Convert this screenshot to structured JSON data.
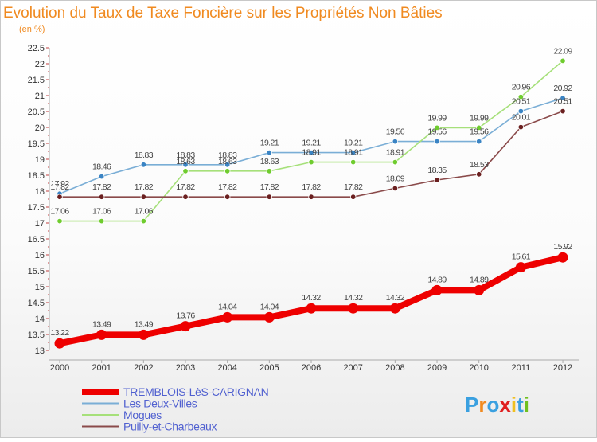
{
  "chart_data": {
    "type": "line",
    "title": "Evolution du Taux de Taxe Foncière sur les Propriétés Non Bâties",
    "subtitle": "(en %)",
    "xlabel": "",
    "ylabel": "",
    "ylim": [
      13,
      22.5
    ],
    "y_ticks": [
      13,
      13.5,
      14,
      14.5,
      15,
      15.5,
      16,
      16.5,
      17,
      17.5,
      18,
      18.5,
      19,
      19.5,
      20,
      20.5,
      21,
      21.5,
      22,
      22.5
    ],
    "y_tick_labels": [
      "13",
      "13.5",
      "14",
      "14.5",
      "15",
      "15.5",
      "16",
      "16.5",
      "17",
      "17.5",
      "18",
      "18.5",
      "19",
      "19.5",
      "20",
      "20.5",
      "21",
      "21.5",
      "22",
      "22.5"
    ],
    "categories": [
      "2000",
      "2001",
      "2002",
      "2003",
      "2004",
      "2005",
      "2006",
      "2007",
      "2008",
      "2009",
      "2010",
      "2011",
      "2012"
    ],
    "grid": false,
    "legend_position": "bottom-left",
    "series": [
      {
        "name": "TREMBLOIS-LèS-CARIGNAN",
        "color": "#ee0000",
        "values": [
          13.22,
          13.49,
          13.49,
          13.76,
          14.04,
          14.04,
          14.32,
          14.32,
          14.32,
          14.89,
          14.89,
          15.61,
          15.92
        ],
        "labels": [
          "13.22",
          "13.49",
          "13.49",
          "13.76",
          "14.04",
          "14.04",
          "14.32",
          "14.32",
          "14.32",
          "14.89",
          "14.89",
          "15.61",
          "15.92"
        ]
      },
      {
        "name": "Les Deux-Villes",
        "color": "#7aaed6",
        "marker_color": "#3a84c4",
        "values": [
          17.92,
          18.46,
          18.83,
          18.83,
          18.83,
          19.21,
          19.21,
          19.21,
          19.56,
          19.56,
          19.56,
          20.51,
          20.92
        ],
        "labels": [
          "17.92",
          "18.46",
          "18.83",
          "18.83",
          "18.83",
          "19.21",
          "19.21",
          "19.21",
          "19.56",
          "19.56",
          "19.56",
          "20.51",
          "20.92"
        ]
      },
      {
        "name": "Mogues",
        "color": "#a6e07a",
        "marker_color": "#6fcc2e",
        "values": [
          17.06,
          17.06,
          17.06,
          18.63,
          18.63,
          18.63,
          18.91,
          18.91,
          18.91,
          19.99,
          19.99,
          20.96,
          22.09
        ],
        "labels": [
          "17.06",
          "17.06",
          "17.06",
          "18.63",
          "18.63",
          "18.63",
          "18.91",
          "18.91",
          "18.91",
          "19.99",
          "19.99",
          "20.96",
          "22.09"
        ]
      },
      {
        "name": "Puilly-et-Charbeaux",
        "color": "#8a4a4a",
        "marker_color": "#6b2020",
        "values": [
          17.82,
          17.82,
          17.82,
          17.82,
          17.82,
          17.82,
          17.82,
          17.82,
          18.09,
          18.35,
          18.53,
          20.01,
          20.51
        ],
        "labels": [
          "17.82",
          "17.82",
          "17.82",
          "17.82",
          "17.82",
          "17.82",
          "17.82",
          "17.82",
          "18.09",
          "18.35",
          "18.53",
          "20.01",
          "20.51"
        ]
      }
    ]
  },
  "colors": {
    "title": "#f08a20",
    "subtitle": "#f08a20",
    "legend_text": "#5060d0",
    "background_gradient_bottom": "#eeeeee"
  },
  "logo": {
    "text": "Proxiti",
    "letter_colors": [
      "#3aa0e0",
      "#f08a20",
      "#3aa0e0",
      "#e02020",
      "#f0c020",
      "#3aa0e0",
      "#70c020"
    ]
  }
}
